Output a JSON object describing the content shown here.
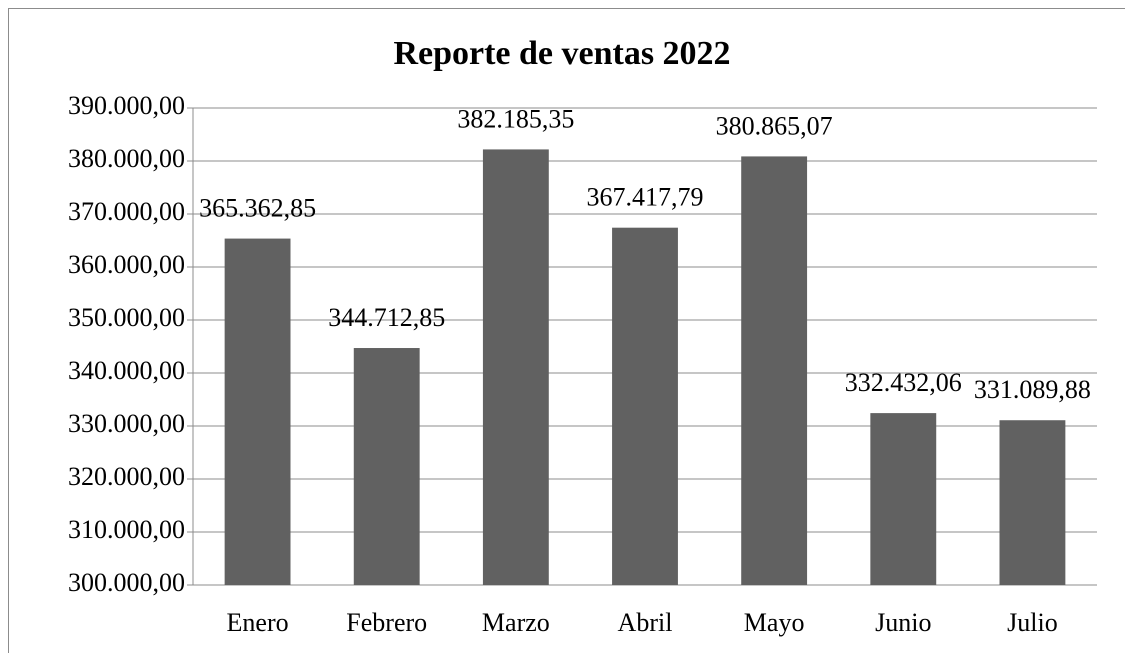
{
  "chart_data": {
    "type": "bar",
    "title": "Reporte de ventas 2022",
    "categories": [
      "Enero",
      "Febrero",
      "Marzo",
      "Abril",
      "Mayo",
      "Junio",
      "Julio"
    ],
    "values": [
      365362.85,
      344712.85,
      382185.35,
      367417.79,
      380865.07,
      332432.06,
      331089.88
    ],
    "value_labels": [
      "365.362,85",
      "344.712,85",
      "382.185,35",
      "367.417,79",
      "380.865,07",
      "332.432,06",
      "331.089,88"
    ],
    "color": "#616161",
    "ylim": [
      300000,
      390000
    ],
    "yticks": [
      {
        "value": 300000,
        "label": "300.000,00"
      },
      {
        "value": 310000,
        "label": "310.000,00"
      },
      {
        "value": 320000,
        "label": "320.000,00"
      },
      {
        "value": 330000,
        "label": "330.000,00"
      },
      {
        "value": 340000,
        "label": "340.000,00"
      },
      {
        "value": 350000,
        "label": "350.000,00"
      },
      {
        "value": 360000,
        "label": "360.000,00"
      },
      {
        "value": 370000,
        "label": "370.000,00"
      },
      {
        "value": 380000,
        "label": "380.000,00"
      },
      {
        "value": 390000,
        "label": "390.000,00"
      }
    ],
    "grid": true
  }
}
